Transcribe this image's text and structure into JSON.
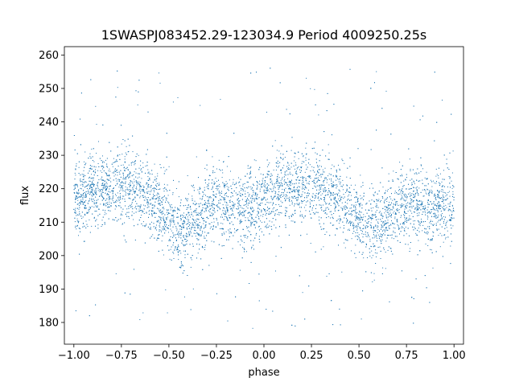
{
  "chart_data": {
    "type": "scatter",
    "title": "1SWASPJ083452.29-123034.9 Period 4009250.25s",
    "xlabel": "phase",
    "ylabel": "flux",
    "xlim": [
      -1.05,
      1.05
    ],
    "ylim": [
      173.5,
      262.5
    ],
    "xticks": [
      -1.0,
      -0.75,
      -0.5,
      -0.25,
      0.0,
      0.25,
      0.5,
      0.75,
      1.0
    ],
    "xtick_labels": [
      "−1.00",
      "−0.75",
      "−0.50",
      "−0.25",
      "0.00",
      "0.25",
      "0.50",
      "0.75",
      "1.00"
    ],
    "yticks": [
      180,
      190,
      200,
      210,
      220,
      230,
      240,
      250,
      260
    ],
    "ytick_labels": [
      "180",
      "190",
      "200",
      "210",
      "220",
      "230",
      "240",
      "250",
      "260"
    ],
    "grid": false,
    "color": "#1f77b4",
    "series": [
      {
        "x_range": [
          -1.0,
          1.0
        ],
        "trend": {
          "phase": [
            -1.0,
            -0.9,
            -0.75,
            -0.65,
            -0.55,
            -0.45,
            -0.35,
            -0.25,
            -0.15,
            -0.05,
            0.0,
            0.1,
            0.25,
            0.35,
            0.45,
            0.55,
            0.65,
            0.75,
            0.85,
            0.95,
            1.0
          ],
          "flux": [
            216,
            220,
            221,
            220,
            214,
            207,
            211,
            216,
            214,
            215,
            216,
            220,
            221,
            220,
            214,
            207,
            211,
            216,
            214,
            215,
            216
          ]
        },
        "scatter_sd": 5.5,
        "outlier_range": [
          178,
          257
        ],
        "point_count": 7000
      }
    ]
  }
}
